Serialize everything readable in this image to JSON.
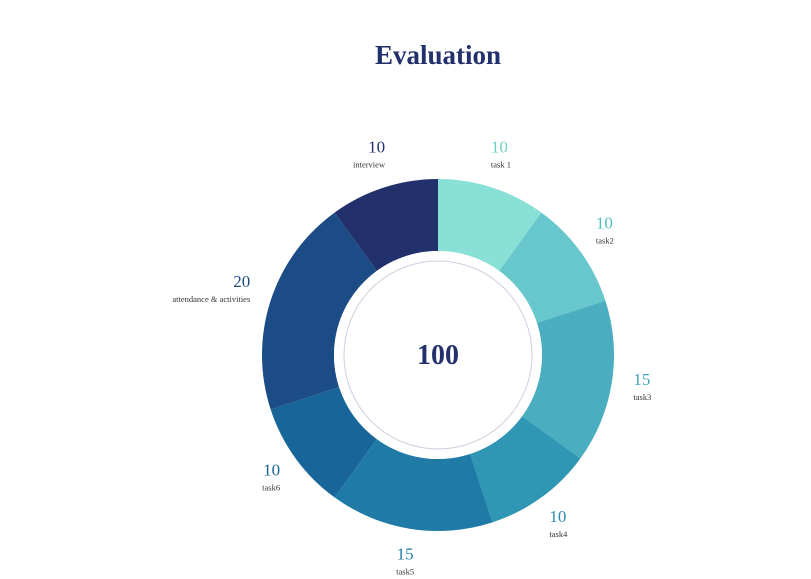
{
  "chart_data": {
    "type": "pie",
    "title": "Evaluation",
    "total_label": "100",
    "series": [
      {
        "label": "task 1",
        "value": 10,
        "color": "#88e0d6",
        "label_color": "#6fd3c8"
      },
      {
        "label": "task2",
        "value": 10,
        "color": "#68c7cc",
        "label_color": "#4fbfc6"
      },
      {
        "label": "task3",
        "value": 15,
        "color": "#4aaec0",
        "label_color": "#3aa4bb"
      },
      {
        "label": "task4",
        "value": 10,
        "color": "#2f96b4",
        "label_color": "#2a8db0"
      },
      {
        "label": "task5",
        "value": 15,
        "color": "#1f7aa6",
        "label_color": "#1f7aa6"
      },
      {
        "label": "task6",
        "value": 10,
        "color": "#186699",
        "label_color": "#186699"
      },
      {
        "label": "attendance & activities",
        "value": 20,
        "color": "#1c4c86",
        "label_color": "#1c4c86"
      },
      {
        "label": "interview",
        "value": 10,
        "color": "#22306b",
        "label_color": "#22306b"
      }
    ]
  }
}
